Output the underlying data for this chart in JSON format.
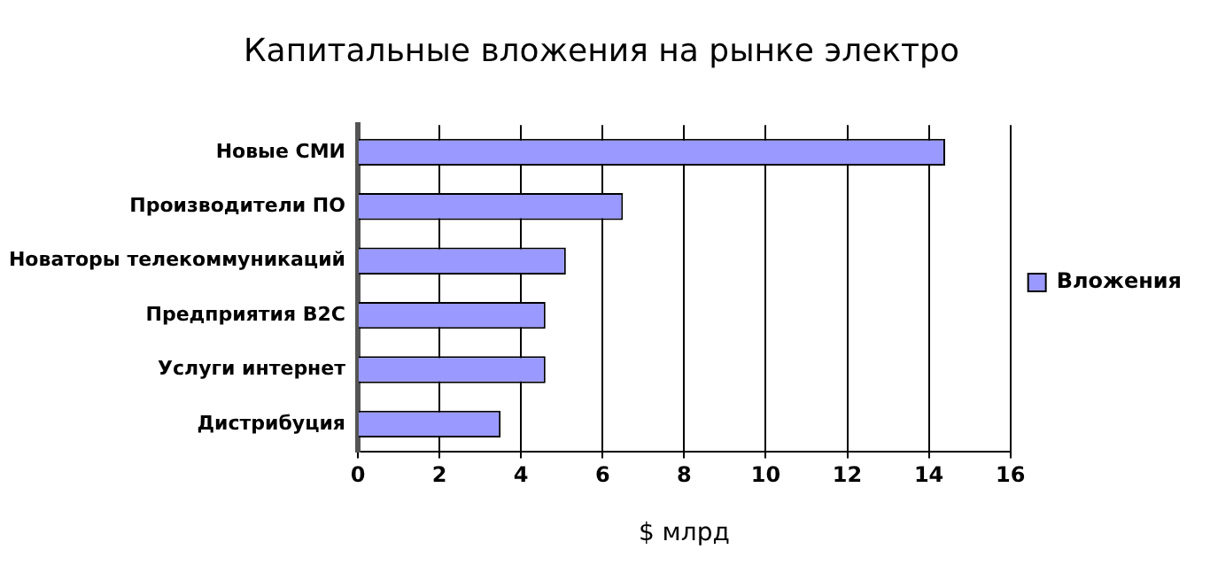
{
  "chart_data": {
    "type": "bar",
    "orientation": "horizontal",
    "title": "Капитальные вложения на рынке электро",
    "xlabel": "$ млрд",
    "categories": [
      "Новые СМИ",
      "Производители ПО",
      "Новаторы телекоммуникаций",
      "Предприятия B2C",
      "Услуги интернет",
      "Дистрибуция"
    ],
    "series": [
      {
        "name": "Вложения",
        "color": "#9999ff",
        "values": [
          14.4,
          6.5,
          5.1,
          4.6,
          4.6,
          3.5
        ]
      }
    ],
    "xlim": [
      0,
      16
    ],
    "xticks": [
      0,
      2,
      4,
      6,
      8,
      10,
      12,
      14,
      16
    ],
    "grid": "x",
    "legend": "right"
  }
}
